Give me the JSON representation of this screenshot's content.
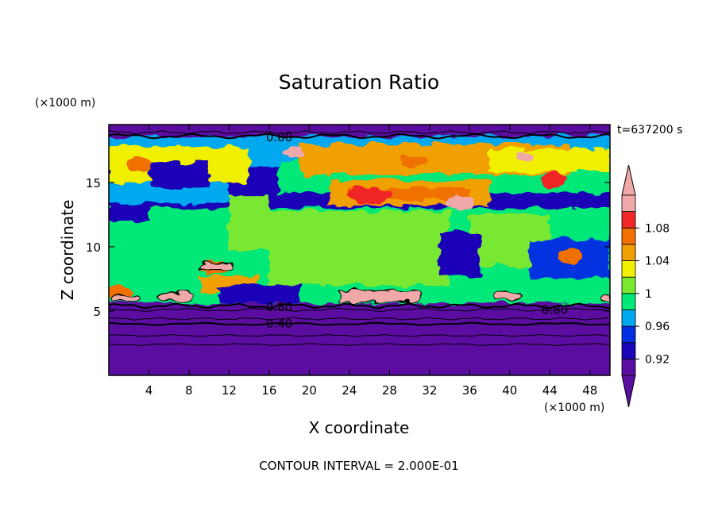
{
  "chart_data": {
    "type": "heatmap",
    "title": "Saturation Ratio",
    "time_label": "t=637200 s",
    "xlabel": "X coordinate",
    "ylabel": "Z coordinate",
    "x_unit": "(×1000 m)",
    "y_unit": "(×1000 m)",
    "xlim": [
      0,
      50
    ],
    "ylim": [
      0,
      19.5
    ],
    "x_ticks": [
      4,
      8,
      12,
      16,
      20,
      24,
      28,
      32,
      36,
      40,
      44,
      48
    ],
    "y_ticks": [
      5,
      10,
      15
    ],
    "footer": "CONTOUR INTERVAL = 2.000E-01",
    "colorbar": {
      "labels": [
        "1.08",
        "1.04",
        "1",
        "0.96",
        "0.92"
      ],
      "levels": [
        0.9,
        0.92,
        0.94,
        0.96,
        0.98,
        1.0,
        1.02,
        1.04,
        1.06,
        1.08,
        1.1
      ],
      "colors": [
        "#5a0ea0",
        "#1a06b8",
        "#0030e0",
        "#00a8f0",
        "#00e878",
        "#78e830",
        "#f0f000",
        "#f0a000",
        "#f07000",
        "#f02828",
        "#f0a8a8"
      ],
      "under_color": "#5a0ea0",
      "over_color": "#f0a8a8"
    },
    "contour_labels": [
      {
        "text": "0.80",
        "x": 17.0,
        "z": 18.5
      },
      {
        "text": "0.80",
        "x": 17.0,
        "z": 5.3
      },
      {
        "text": "0.40",
        "x": 17.0,
        "z": 4.0
      },
      {
        "text": "0.80",
        "x": 44.5,
        "z": 5.1
      }
    ]
  }
}
